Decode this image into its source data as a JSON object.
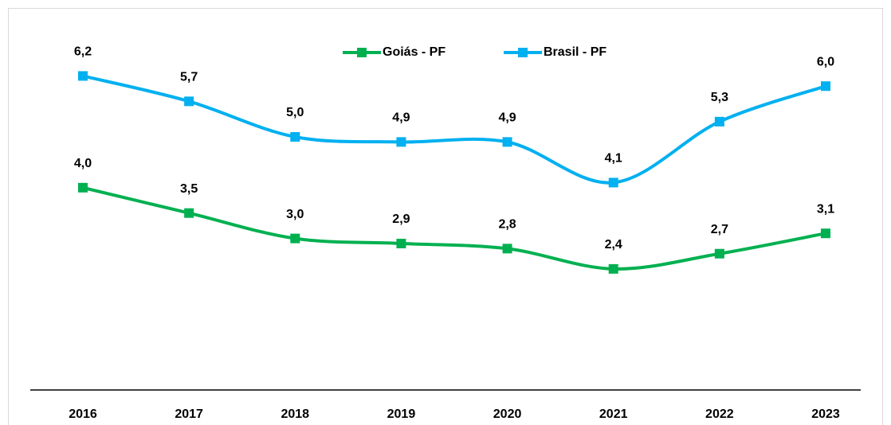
{
  "chart_data": {
    "type": "line",
    "categories": [
      "2016",
      "2017",
      "2018",
      "2019",
      "2020",
      "2021",
      "2022",
      "2023"
    ],
    "series": [
      {
        "name": "Goiás - PF",
        "color": "#00b050",
        "values": [
          4.0,
          3.5,
          3.0,
          2.9,
          2.8,
          2.4,
          2.7,
          3.1
        ],
        "value_labels": [
          "4,0",
          "3,5",
          "3,0",
          "2,9",
          "2,8",
          "2,4",
          "2,7",
          "3,1"
        ]
      },
      {
        "name": "Brasil - PF",
        "color": "#00b0f0",
        "values": [
          6.2,
          5.7,
          5.0,
          4.9,
          4.9,
          4.1,
          5.3,
          6.0
        ],
        "value_labels": [
          "6,2",
          "5,7",
          "5,0",
          "4,9",
          "4,9",
          "4,1",
          "5,3",
          "6,0"
        ]
      }
    ],
    "ylim": [
      0,
      7
    ],
    "legend": "top"
  }
}
